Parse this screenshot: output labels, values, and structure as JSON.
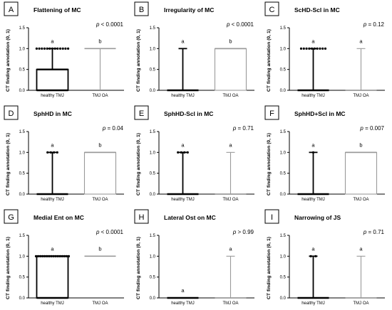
{
  "chart_data": [
    {
      "type": "box",
      "letter": "A",
      "title": "Flattening of MC",
      "p_value": "< 0.0001",
      "ylabel": "CT finding annotation (0, 1)",
      "yticks": [
        "0.0",
        "0.5",
        "1.0",
        "1.5"
      ],
      "ylim": [
        0,
        1.5
      ],
      "categories": [
        "healthy TMJ",
        "TMJ OA"
      ],
      "groups": [
        {
          "name": "healthy TMJ",
          "min": 0,
          "q1": 0,
          "median": 0,
          "q3": 0.5,
          "max": 1,
          "outliers_at_max": 13,
          "outliers_at_min": 0,
          "significance": "a"
        },
        {
          "name": "TMJ OA",
          "min": 0,
          "q1": 1,
          "median": 1,
          "q3": 1,
          "max": 1,
          "outliers_at_max": 0,
          "outliers_at_min": 0,
          "significance": "b"
        }
      ]
    },
    {
      "type": "box",
      "letter": "B",
      "title": "Irregularity of MC",
      "p_value": "< 0.0001",
      "ylabel": "CT finding annotation (0, 1)",
      "yticks": [
        "0.0",
        "0.5",
        "1.0",
        "1.5"
      ],
      "ylim": [
        0,
        1.5
      ],
      "categories": [
        "healthy TMJ",
        "TMJ OA"
      ],
      "groups": [
        {
          "name": "healthy TMJ",
          "min": 0,
          "q1": 0,
          "median": 0,
          "q3": 0,
          "max": 1,
          "outliers_at_max": 0,
          "outliers_at_min": 0,
          "significance": "a"
        },
        {
          "name": "TMJ OA",
          "min": 0,
          "q1": 0,
          "median": 1,
          "q3": 1,
          "max": 1,
          "outliers_at_max": 0,
          "outliers_at_min": 0,
          "significance": "b"
        }
      ]
    },
    {
      "type": "box",
      "letter": "C",
      "title": "ScHD-Scl in MC",
      "p_value": "= 0.12",
      "ylabel": "CT finding annotation (0, 1)",
      "yticks": [
        "0.0",
        "0.5",
        "1.0",
        "1.5"
      ],
      "ylim": [
        0,
        1.5
      ],
      "categories": [
        "healthy TMJ",
        "TMJ OA"
      ],
      "groups": [
        {
          "name": "healthy TMJ",
          "min": 0,
          "q1": 0,
          "median": 0,
          "q3": 0,
          "max": 1,
          "outliers_at_max": 10,
          "outliers_at_min": 0,
          "significance": "a"
        },
        {
          "name": "TMJ OA",
          "min": 0,
          "q1": 0,
          "median": 0,
          "q3": 0,
          "max": 1,
          "outliers_at_max": 0,
          "outliers_at_min": 0,
          "significance": "a"
        }
      ]
    },
    {
      "type": "box",
      "letter": "D",
      "title": "SphHD in MC",
      "p_value": "= 0.04",
      "ylabel": "CT finding annotation (0, 1)",
      "yticks": [
        "0.0",
        "0.5",
        "1.0",
        "1.5"
      ],
      "ylim": [
        0,
        1.5
      ],
      "categories": [
        "healthy TMJ",
        "TMJ OA"
      ],
      "groups": [
        {
          "name": "healthy TMJ",
          "min": 0,
          "q1": 0,
          "median": 0,
          "q3": 0,
          "max": 1,
          "outliers_at_max": 4,
          "outliers_at_min": 0,
          "significance": "a"
        },
        {
          "name": "TMJ OA",
          "min": 0,
          "q1": 0,
          "median": 1,
          "q3": 1,
          "max": 1,
          "outliers_at_max": 0,
          "outliers_at_min": 0,
          "significance": "b"
        }
      ]
    },
    {
      "type": "box",
      "letter": "E",
      "title": "SphHD-Scl in MC",
      "p_value": "= 0.71",
      "ylabel": "CT finding annotation (0, 1)",
      "yticks": [
        "0.0",
        "0.5",
        "1.0",
        "1.5"
      ],
      "ylim": [
        0,
        1.5
      ],
      "categories": [
        "healthy TMJ",
        "TMJ OA"
      ],
      "groups": [
        {
          "name": "healthy TMJ",
          "min": 0,
          "q1": 0,
          "median": 0,
          "q3": 0,
          "max": 1,
          "outliers_at_max": 4,
          "outliers_at_min": 0,
          "significance": "a"
        },
        {
          "name": "TMJ OA",
          "min": 0,
          "q1": 0,
          "median": 0,
          "q3": 0,
          "max": 1,
          "outliers_at_max": 0,
          "outliers_at_min": 0,
          "significance": "a"
        }
      ]
    },
    {
      "type": "box",
      "letter": "F",
      "title": "SphHD+Scl in MC",
      "p_value": "= 0.007",
      "ylabel": "CT finding annotation (0, 1)",
      "yticks": [
        "0.0",
        "0.5",
        "1.0",
        "1.5"
      ],
      "ylim": [
        0,
        1.5
      ],
      "categories": [
        "healthy TMJ",
        "TMJ OA"
      ],
      "groups": [
        {
          "name": "healthy TMJ",
          "min": 0,
          "q1": 0,
          "median": 0,
          "q3": 0,
          "max": 1,
          "outliers_at_max": 1,
          "outliers_at_min": 0,
          "significance": "a"
        },
        {
          "name": "TMJ OA",
          "min": 0,
          "q1": 0,
          "median": 1,
          "q3": 1,
          "max": 1,
          "outliers_at_max": 0,
          "outliers_at_min": 0,
          "significance": "b"
        }
      ]
    },
    {
      "type": "box",
      "letter": "G",
      "title": "Medial Ent on MC",
      "p_value": "< 0.0001",
      "ylabel": "CT finding annotation (0, 1)",
      "yticks": [
        "0.0",
        "0.5",
        "1.0",
        "1.5"
      ],
      "ylim": [
        0,
        1.5
      ],
      "categories": [
        "healthy TMJ",
        "TMJ OA"
      ],
      "groups": [
        {
          "name": "healthy TMJ",
          "min": 0,
          "q1": 0,
          "median": 0,
          "q3": 1,
          "max": 1,
          "outliers_at_max": 16,
          "outliers_at_min": 0,
          "significance": "a"
        },
        {
          "name": "TMJ OA",
          "min": 1,
          "q1": 1,
          "median": 1,
          "q3": 1,
          "max": 1,
          "outliers_at_max": 0,
          "outliers_at_min": 0,
          "significance": "b"
        }
      ]
    },
    {
      "type": "box",
      "letter": "H",
      "title": "Lateral Ost on MC",
      "p_value": "> 0.99",
      "ylabel": "CT finding annotation (0, 1)",
      "yticks": [
        "0.0",
        "0.5",
        "1.0",
        "1.5"
      ],
      "ylim": [
        0,
        1.5
      ],
      "categories": [
        "healthy TMJ",
        "TMJ OA"
      ],
      "groups": [
        {
          "name": "healthy TMJ",
          "min": 0,
          "q1": 0,
          "median": 0,
          "q3": 0,
          "max": 0,
          "outliers_at_max": 0,
          "outliers_at_min": 0,
          "significance": "a"
        },
        {
          "name": "TMJ OA",
          "min": 0,
          "q1": 0,
          "median": 0,
          "q3": 0,
          "max": 1,
          "outliers_at_max": 0,
          "outliers_at_min": 0,
          "significance": "a"
        }
      ]
    },
    {
      "type": "box",
      "letter": "I",
      "title": "Narrowing of JS",
      "p_value": "= 0.71",
      "ylabel": "CT finding annotation (0, 1)",
      "yticks": [
        "0.0",
        "0.5",
        "1.0",
        "1.5"
      ],
      "ylim": [
        0,
        1.5
      ],
      "categories": [
        "healthy TMJ",
        "TMJ OA"
      ],
      "groups": [
        {
          "name": "healthy TMJ",
          "min": 0,
          "q1": 0,
          "median": 0,
          "q3": 0,
          "max": 1,
          "outliers_at_max": 2,
          "outliers_at_min": 0,
          "significance": "a"
        },
        {
          "name": "TMJ OA",
          "min": 0,
          "q1": 0,
          "median": 0,
          "q3": 0,
          "max": 1,
          "outliers_at_max": 0,
          "outliers_at_min": 0,
          "significance": "a"
        }
      ]
    }
  ],
  "colors": {
    "healthy": "#000000",
    "oa": "#9a9a9a",
    "axis": "#000000"
  }
}
